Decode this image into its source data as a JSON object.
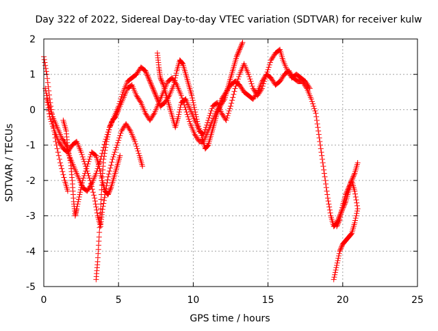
{
  "chart_data": {
    "type": "scatter",
    "title": "Day 322 of 2022, Sidereal Day-to-day VTEC variation (SDTVAR) for receiver kulw",
    "xlabel": "GPS time / hours",
    "ylabel": "SDTVAR / TECUs",
    "xlim": [
      0,
      25
    ],
    "ylim": [
      -5,
      2
    ],
    "xticks": [
      0,
      5,
      10,
      15,
      20,
      25
    ],
    "yticks": [
      -5,
      -4,
      -3,
      -2,
      -1,
      0,
      1,
      2
    ],
    "grid": true,
    "marker": "+",
    "color": "#ff0000",
    "series": [
      {
        "values": [
          [
            0.0,
            1.5
          ],
          [
            0.2,
            1.0
          ],
          [
            0.4,
            0.3
          ],
          [
            0.6,
            -0.3
          ],
          [
            0.8,
            -0.9
          ],
          [
            1.1,
            -1.5
          ],
          [
            1.4,
            -2.0
          ],
          [
            1.6,
            -2.3
          ]
        ]
      },
      {
        "values": [
          [
            0.1,
            0.6
          ],
          [
            0.3,
            0.2
          ],
          [
            0.6,
            -0.2
          ],
          [
            0.9,
            -0.5
          ],
          [
            1.2,
            -0.8
          ],
          [
            1.5,
            -1.0
          ],
          [
            1.7,
            -1.3
          ],
          [
            2.0,
            -1.6
          ],
          [
            2.3,
            -1.9
          ],
          [
            2.6,
            -2.2
          ],
          [
            2.9,
            -2.3
          ],
          [
            3.2,
            -2.1
          ],
          [
            3.5,
            -1.8
          ],
          [
            3.8,
            -1.4
          ],
          [
            4.1,
            -0.9
          ],
          [
            4.4,
            -0.5
          ],
          [
            4.7,
            -0.2
          ],
          [
            5.0,
            0.1
          ],
          [
            5.3,
            0.5
          ],
          [
            5.6,
            0.8
          ],
          [
            5.9,
            0.9
          ],
          [
            6.2,
            1.0
          ],
          [
            6.5,
            1.2
          ],
          [
            6.8,
            1.1
          ],
          [
            7.0,
            0.9
          ],
          [
            7.2,
            0.7
          ],
          [
            7.4,
            0.5
          ],
          [
            7.6,
            0.3
          ],
          [
            7.8,
            0.1
          ],
          [
            8.1,
            0.2
          ],
          [
            8.4,
            0.4
          ],
          [
            8.7,
            0.7
          ],
          [
            8.9,
            1.1
          ],
          [
            9.1,
            1.4
          ],
          [
            9.3,
            1.3
          ],
          [
            9.5,
            1.0
          ],
          [
            9.7,
            0.7
          ],
          [
            9.9,
            0.4
          ],
          [
            10.1,
            0.0
          ],
          [
            10.3,
            -0.4
          ],
          [
            10.6,
            -0.8
          ],
          [
            10.8,
            -1.1
          ],
          [
            11.0,
            -1.0
          ],
          [
            11.2,
            -0.7
          ],
          [
            11.4,
            -0.4
          ],
          [
            11.6,
            -0.1
          ],
          [
            11.8,
            0.1
          ],
          [
            12.1,
            0.3
          ],
          [
            12.3,
            0.6
          ],
          [
            12.5,
            0.9
          ],
          [
            12.7,
            1.2
          ],
          [
            12.9,
            1.5
          ],
          [
            13.1,
            1.7
          ],
          [
            13.3,
            1.9
          ]
        ]
      },
      {
        "values": [
          [
            0.2,
            0.3
          ],
          [
            0.4,
            -0.2
          ],
          [
            0.7,
            -0.6
          ],
          [
            1.0,
            -0.9
          ],
          [
            1.3,
            -1.1
          ],
          [
            1.6,
            -1.2
          ],
          [
            1.9,
            -1.0
          ],
          [
            2.2,
            -0.9
          ],
          [
            2.5,
            -1.2
          ],
          [
            2.8,
            -1.6
          ],
          [
            3.1,
            -2.0
          ],
          [
            3.4,
            -2.5
          ],
          [
            3.6,
            -3.0
          ],
          [
            3.8,
            -3.3
          ],
          [
            3.9,
            -2.9
          ],
          [
            4.1,
            -2.4
          ],
          [
            4.3,
            -1.9
          ],
          [
            4.6,
            -1.4
          ],
          [
            4.9,
            -1.0
          ],
          [
            5.2,
            -0.6
          ],
          [
            5.5,
            -0.4
          ],
          [
            5.8,
            -0.6
          ],
          [
            6.1,
            -0.9
          ],
          [
            6.4,
            -1.3
          ],
          [
            6.6,
            -1.6
          ]
        ]
      },
      {
        "values": [
          [
            1.3,
            -0.3
          ],
          [
            1.5,
            -0.6
          ],
          [
            1.6,
            -1.1
          ],
          [
            1.8,
            -1.5
          ],
          [
            1.9,
            -2.0
          ],
          [
            2.0,
            -2.6
          ],
          [
            2.1,
            -3.0
          ],
          [
            2.2,
            -2.8
          ],
          [
            2.4,
            -2.4
          ],
          [
            2.6,
            -2.0
          ],
          [
            2.9,
            -1.6
          ],
          [
            3.2,
            -1.2
          ],
          [
            3.5,
            -1.3
          ],
          [
            3.7,
            -1.6
          ],
          [
            3.9,
            -2.0
          ],
          [
            4.1,
            -2.3
          ],
          [
            4.3,
            -2.4
          ],
          [
            4.5,
            -2.2
          ],
          [
            4.7,
            -1.9
          ],
          [
            4.9,
            -1.6
          ],
          [
            5.1,
            -1.3
          ]
        ]
      },
      {
        "values": [
          [
            3.5,
            -4.8
          ],
          [
            3.6,
            -4.3
          ],
          [
            3.7,
            -3.6
          ],
          [
            3.8,
            -2.8
          ],
          [
            3.9,
            -2.0
          ],
          [
            4.0,
            -1.4
          ],
          [
            4.2,
            -0.9
          ],
          [
            4.4,
            -0.5
          ],
          [
            4.6,
            -0.3
          ],
          [
            4.8,
            -0.2
          ],
          [
            5.0,
            0.0
          ],
          [
            5.3,
            0.3
          ],
          [
            5.6,
            0.6
          ],
          [
            5.9,
            0.7
          ],
          [
            6.2,
            0.4
          ],
          [
            6.5,
            0.2
          ],
          [
            6.8,
            -0.1
          ],
          [
            7.1,
            -0.3
          ],
          [
            7.4,
            -0.1
          ],
          [
            7.7,
            0.2
          ],
          [
            8.0,
            0.5
          ],
          [
            8.3,
            0.8
          ],
          [
            8.6,
            0.9
          ],
          [
            8.9,
            0.7
          ],
          [
            9.2,
            0.4
          ],
          [
            9.5,
            0.0
          ],
          [
            9.8,
            -0.4
          ],
          [
            10.1,
            -0.7
          ],
          [
            10.4,
            -0.9
          ],
          [
            10.7,
            -0.9
          ],
          [
            11.0,
            -0.6
          ],
          [
            11.3,
            -0.3
          ],
          [
            11.6,
            0.0
          ],
          [
            11.9,
            0.3
          ],
          [
            12.2,
            0.5
          ],
          [
            12.5,
            0.7
          ],
          [
            12.8,
            0.8
          ],
          [
            13.1,
            0.7
          ],
          [
            13.4,
            0.5
          ],
          [
            13.7,
            0.4
          ],
          [
            14.0,
            0.3
          ],
          [
            14.3,
            0.5
          ],
          [
            14.6,
            0.8
          ],
          [
            14.9,
            1.0
          ],
          [
            15.2,
            0.9
          ],
          [
            15.5,
            0.7
          ],
          [
            15.8,
            0.8
          ],
          [
            16.1,
            1.0
          ],
          [
            16.4,
            1.1
          ],
          [
            16.7,
            0.9
          ],
          [
            17.0,
            0.8
          ],
          [
            17.3,
            0.8
          ],
          [
            17.6,
            0.6
          ],
          [
            17.9,
            0.3
          ],
          [
            18.2,
            -0.1
          ],
          [
            18.4,
            -0.7
          ],
          [
            18.6,
            -1.3
          ],
          [
            18.8,
            -1.9
          ],
          [
            19.0,
            -2.5
          ],
          [
            19.2,
            -3.0
          ],
          [
            19.4,
            -3.3
          ],
          [
            19.6,
            -3.2
          ],
          [
            19.8,
            -3.0
          ],
          [
            20.0,
            -2.8
          ],
          [
            20.2,
            -2.6
          ],
          [
            20.4,
            -2.3
          ],
          [
            20.6,
            -2.0
          ],
          [
            20.8,
            -1.8
          ],
          [
            21.0,
            -1.5
          ]
        ]
      },
      {
        "values": [
          [
            7.6,
            1.6
          ],
          [
            7.7,
            1.2
          ],
          [
            7.8,
            0.9
          ],
          [
            8.0,
            0.7
          ],
          [
            8.2,
            0.4
          ],
          [
            8.4,
            0.1
          ],
          [
            8.6,
            -0.2
          ],
          [
            8.8,
            -0.5
          ],
          [
            9.0,
            -0.2
          ],
          [
            9.2,
            0.2
          ],
          [
            9.5,
            0.3
          ],
          [
            9.8,
            0.0
          ],
          [
            10.1,
            -0.3
          ],
          [
            10.4,
            -0.6
          ],
          [
            10.7,
            -0.7
          ],
          [
            11.0,
            -0.3
          ],
          [
            11.3,
            0.1
          ],
          [
            11.6,
            0.2
          ],
          [
            11.9,
            -0.1
          ],
          [
            12.2,
            -0.3
          ],
          [
            12.5,
            0.1
          ],
          [
            12.8,
            0.6
          ],
          [
            13.1,
            1.0
          ],
          [
            13.4,
            1.3
          ],
          [
            13.7,
            1.0
          ],
          [
            14.0,
            0.6
          ],
          [
            14.3,
            0.4
          ],
          [
            14.6,
            0.6
          ],
          [
            14.9,
            1.0
          ],
          [
            15.2,
            1.4
          ],
          [
            15.5,
            1.6
          ],
          [
            15.8,
            1.7
          ],
          [
            16.0,
            1.4
          ],
          [
            16.3,
            1.1
          ],
          [
            16.6,
            0.9
          ],
          [
            16.9,
            1.0
          ],
          [
            17.2,
            0.9
          ],
          [
            17.5,
            0.8
          ],
          [
            17.8,
            0.6
          ]
        ]
      },
      {
        "values": [
          [
            19.4,
            -4.8
          ],
          [
            19.6,
            -4.4
          ],
          [
            19.8,
            -4.0
          ],
          [
            20.0,
            -3.8
          ],
          [
            20.2,
            -3.7
          ],
          [
            20.4,
            -3.6
          ],
          [
            20.6,
            -3.5
          ],
          [
            20.8,
            -3.2
          ],
          [
            21.0,
            -2.8
          ],
          [
            20.8,
            -2.3
          ],
          [
            20.6,
            -2.0
          ],
          [
            20.4,
            -2.2
          ],
          [
            20.2,
            -2.4
          ],
          [
            20.0,
            -2.7
          ],
          [
            19.8,
            -3.1
          ],
          [
            19.6,
            -3.3
          ]
        ]
      }
    ]
  }
}
